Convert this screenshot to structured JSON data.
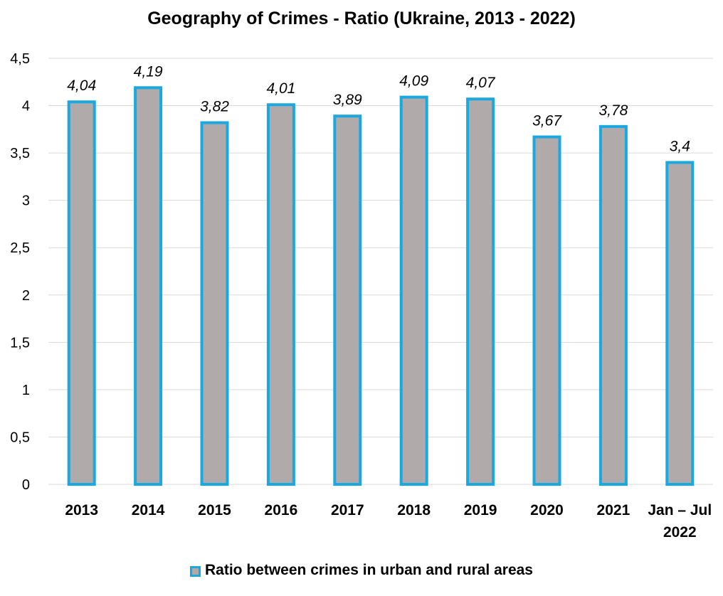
{
  "chart_data": {
    "type": "bar",
    "title": "Geography of Crimes - Ratio (Ukraine, 2013 - 2022)",
    "categories": [
      "2013",
      "2014",
      "2015",
      "2016",
      "2017",
      "2018",
      "2019",
      "2020",
      "2021",
      "Jan – Jul 2022"
    ],
    "series": [
      {
        "name": "Ratio between crimes in urban and rural areas",
        "values": [
          4.04,
          4.19,
          3.82,
          4.01,
          3.89,
          4.09,
          4.07,
          3.67,
          3.78,
          3.4
        ],
        "labels": [
          "4,04",
          "4,19",
          "3,82",
          "4,01",
          "3,89",
          "4,09",
          "4,07",
          "3,67",
          "3,78",
          "3,4"
        ]
      }
    ],
    "ylim": [
      0,
      4.5
    ],
    "yticks": [
      "0",
      "0,5",
      "1",
      "1,5",
      "2",
      "2,5",
      "3",
      "3,5",
      "4",
      "4,5"
    ],
    "grid": true,
    "legend": "bottom",
    "colors": {
      "bar_fill": "#b0aaaa",
      "bar_border": "#19a8e0",
      "grid": "#d9d9d9"
    }
  }
}
